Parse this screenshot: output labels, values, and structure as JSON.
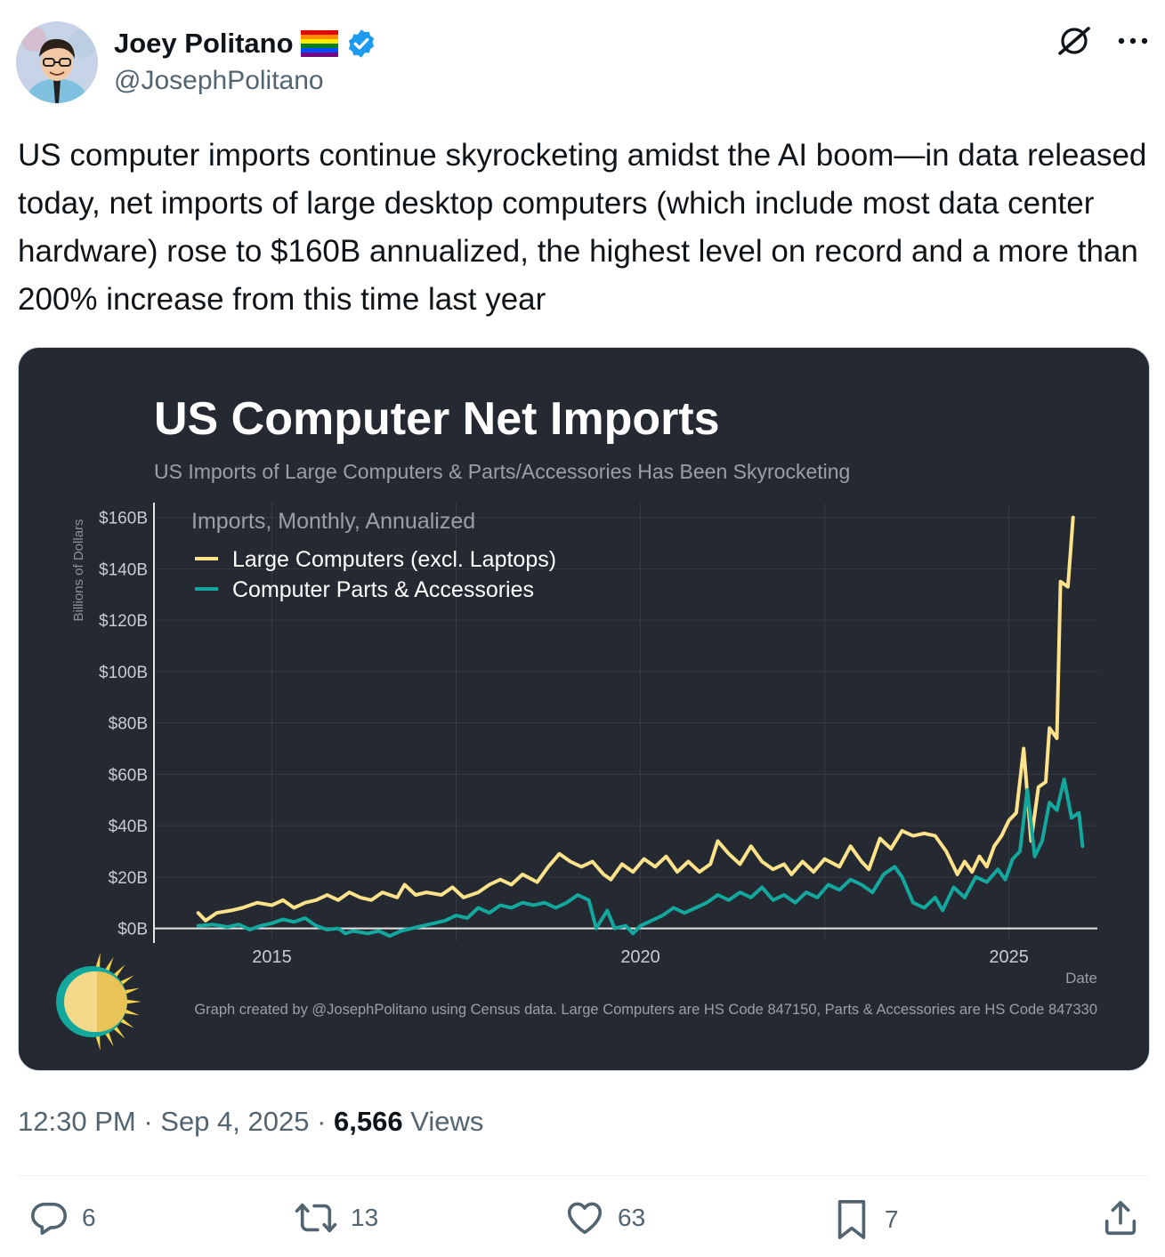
{
  "author": {
    "display_name": "Joey Politano",
    "flag": "rainbow-flag",
    "verified": true,
    "handle": "@JosephPolitano"
  },
  "tweet": {
    "text": "US computer imports continue skyrocketing amidst the AI boom—in data released today, net imports of large desktop computers (which include most data center hardware) rose to $160B annualized, the highest level on record and a more than 200% increase from this time last year"
  },
  "meta": {
    "time": "12:30 PM",
    "sep1": " · ",
    "date": "Sep 4, 2025",
    "sep2": " · ",
    "views_count": "6,566",
    "views_label": " Views"
  },
  "actions": {
    "replies": "6",
    "reposts": "13",
    "likes": "63",
    "bookmarks": "7"
  },
  "icons": [
    "grok-icon",
    "more-icon",
    "reply-icon",
    "repost-icon",
    "like-icon",
    "bookmark-icon",
    "share-icon",
    "verified-icon",
    "sun-logo-icon"
  ],
  "colors": {
    "chart_bg": "#252931",
    "large_computers": "#ffe38a",
    "parts": "#13a89e",
    "verified": "#1d9bf0"
  },
  "chart_data": {
    "type": "line",
    "title": "US Computer Net Imports",
    "subtitle": "US Imports of Large Computers & Parts/Accessories Has Been Skyrocketing",
    "legend_title": "Imports, Monthly, Annualized",
    "legend_position": "top-left",
    "xlabel": "Date",
    "ylabel": "Billions of Dollars",
    "xlim": [
      2013.4,
      2026.2
    ],
    "ylim": [
      -5,
      163
    ],
    "x_ticks": [
      2015,
      2020,
      2025
    ],
    "x_tick_labels": [
      "2015",
      "2020",
      "2025"
    ],
    "y_ticks": [
      0,
      20,
      40,
      60,
      80,
      100,
      120,
      140,
      160
    ],
    "y_tick_labels": [
      "$0B",
      "$20B",
      "$40B",
      "$60B",
      "$80B",
      "$100B",
      "$120B",
      "$140B",
      "$160B"
    ],
    "grid": true,
    "caption": "Graph created by @JosephPolitano using Census data. Large Computers are HS Code 847150, Parts & Accessories are HS Code 847330",
    "series": [
      {
        "name": "Large Computers (excl. Laptops)",
        "color": "#ffe38a",
        "points": [
          [
            2014.0,
            6
          ],
          [
            2014.1,
            3
          ],
          [
            2014.25,
            6
          ],
          [
            2014.45,
            7
          ],
          [
            2014.6,
            8
          ],
          [
            2014.8,
            10
          ],
          [
            2015.0,
            9
          ],
          [
            2015.15,
            11
          ],
          [
            2015.3,
            8
          ],
          [
            2015.45,
            10
          ],
          [
            2015.6,
            11
          ],
          [
            2015.75,
            13
          ],
          [
            2015.9,
            11
          ],
          [
            2016.05,
            14
          ],
          [
            2016.2,
            12
          ],
          [
            2016.35,
            11
          ],
          [
            2016.5,
            14
          ],
          [
            2016.7,
            12
          ],
          [
            2016.8,
            17
          ],
          [
            2016.95,
            13
          ],
          [
            2017.1,
            14
          ],
          [
            2017.3,
            13
          ],
          [
            2017.45,
            16
          ],
          [
            2017.6,
            12
          ],
          [
            2017.8,
            14
          ],
          [
            2017.95,
            17
          ],
          [
            2018.1,
            19
          ],
          [
            2018.25,
            17
          ],
          [
            2018.4,
            21
          ],
          [
            2018.6,
            18
          ],
          [
            2018.75,
            24
          ],
          [
            2018.9,
            29
          ],
          [
            2019.05,
            26
          ],
          [
            2019.2,
            24
          ],
          [
            2019.35,
            26
          ],
          [
            2019.5,
            21
          ],
          [
            2019.6,
            19
          ],
          [
            2019.75,
            25
          ],
          [
            2019.9,
            22
          ],
          [
            2020.05,
            27
          ],
          [
            2020.2,
            24
          ],
          [
            2020.35,
            28
          ],
          [
            2020.5,
            22
          ],
          [
            2020.65,
            26
          ],
          [
            2020.8,
            22
          ],
          [
            2020.95,
            25
          ],
          [
            2021.05,
            34
          ],
          [
            2021.2,
            29
          ],
          [
            2021.35,
            25
          ],
          [
            2021.5,
            32
          ],
          [
            2021.65,
            26
          ],
          [
            2021.8,
            23
          ],
          [
            2021.95,
            25
          ],
          [
            2022.05,
            21
          ],
          [
            2022.2,
            26
          ],
          [
            2022.35,
            22
          ],
          [
            2022.5,
            27
          ],
          [
            2022.7,
            24
          ],
          [
            2022.85,
            32
          ],
          [
            2023.0,
            26
          ],
          [
            2023.1,
            23
          ],
          [
            2023.25,
            35
          ],
          [
            2023.4,
            31
          ],
          [
            2023.55,
            38
          ],
          [
            2023.7,
            36
          ],
          [
            2023.85,
            37
          ],
          [
            2024.0,
            36
          ],
          [
            2024.15,
            30
          ],
          [
            2024.3,
            21
          ],
          [
            2024.4,
            26
          ],
          [
            2024.5,
            22
          ],
          [
            2024.6,
            28
          ],
          [
            2024.7,
            24
          ],
          [
            2024.8,
            32
          ],
          [
            2024.9,
            36
          ],
          [
            2025.0,
            42
          ],
          [
            2025.1,
            45
          ],
          [
            2025.2,
            70
          ],
          [
            2025.3,
            34
          ],
          [
            2025.4,
            55
          ],
          [
            2025.5,
            57
          ],
          [
            2025.55,
            78
          ],
          [
            2025.65,
            74
          ],
          [
            2025.7,
            135
          ],
          [
            2025.8,
            133
          ],
          [
            2025.87,
            160
          ]
        ]
      },
      {
        "name": "Computer Parts & Accessories",
        "color": "#13a89e",
        "points": [
          [
            2014.0,
            1
          ],
          [
            2014.2,
            1.5
          ],
          [
            2014.4,
            0.5
          ],
          [
            2014.55,
            1.5
          ],
          [
            2014.7,
            -0.5
          ],
          [
            2014.85,
            1
          ],
          [
            2015.0,
            2
          ],
          [
            2015.15,
            3.5
          ],
          [
            2015.3,
            2.5
          ],
          [
            2015.45,
            4
          ],
          [
            2015.6,
            1
          ],
          [
            2015.75,
            -0.5
          ],
          [
            2015.9,
            0
          ],
          [
            2016.0,
            -2
          ],
          [
            2016.1,
            -1
          ],
          [
            2016.3,
            -2
          ],
          [
            2016.45,
            -1
          ],
          [
            2016.6,
            -3
          ],
          [
            2016.75,
            -1
          ],
          [
            2016.9,
            0
          ],
          [
            2017.05,
            1
          ],
          [
            2017.2,
            2
          ],
          [
            2017.35,
            3
          ],
          [
            2017.5,
            5
          ],
          [
            2017.65,
            4
          ],
          [
            2017.8,
            8
          ],
          [
            2017.95,
            6
          ],
          [
            2018.1,
            9
          ],
          [
            2018.25,
            8
          ],
          [
            2018.4,
            10
          ],
          [
            2018.55,
            9
          ],
          [
            2018.7,
            10
          ],
          [
            2018.85,
            8
          ],
          [
            2019.0,
            10
          ],
          [
            2019.15,
            13
          ],
          [
            2019.3,
            11
          ],
          [
            2019.4,
            0
          ],
          [
            2019.55,
            7
          ],
          [
            2019.65,
            0
          ],
          [
            2019.8,
            1
          ],
          [
            2019.9,
            -2
          ],
          [
            2020.0,
            1
          ],
          [
            2020.15,
            3
          ],
          [
            2020.3,
            5
          ],
          [
            2020.45,
            8
          ],
          [
            2020.6,
            6
          ],
          [
            2020.75,
            8
          ],
          [
            2020.9,
            10
          ],
          [
            2021.05,
            13
          ],
          [
            2021.2,
            11
          ],
          [
            2021.35,
            14
          ],
          [
            2021.5,
            12
          ],
          [
            2021.65,
            16
          ],
          [
            2021.8,
            11
          ],
          [
            2021.95,
            13
          ],
          [
            2022.1,
            10
          ],
          [
            2022.25,
            14
          ],
          [
            2022.4,
            12
          ],
          [
            2022.55,
            17
          ],
          [
            2022.7,
            15
          ],
          [
            2022.85,
            19
          ],
          [
            2023.0,
            17
          ],
          [
            2023.15,
            14
          ],
          [
            2023.3,
            21
          ],
          [
            2023.45,
            24
          ],
          [
            2023.55,
            20
          ],
          [
            2023.7,
            10
          ],
          [
            2023.85,
            8
          ],
          [
            2024.0,
            12
          ],
          [
            2024.1,
            7
          ],
          [
            2024.25,
            16
          ],
          [
            2024.4,
            12
          ],
          [
            2024.55,
            20
          ],
          [
            2024.7,
            18
          ],
          [
            2024.85,
            23
          ],
          [
            2024.95,
            19
          ],
          [
            2025.05,
            27
          ],
          [
            2025.15,
            30
          ],
          [
            2025.25,
            54
          ],
          [
            2025.35,
            28
          ],
          [
            2025.45,
            34
          ],
          [
            2025.55,
            49
          ],
          [
            2025.65,
            46
          ],
          [
            2025.75,
            58
          ],
          [
            2025.85,
            43
          ],
          [
            2025.95,
            45
          ],
          [
            2026.0,
            32
          ]
        ]
      }
    ]
  }
}
